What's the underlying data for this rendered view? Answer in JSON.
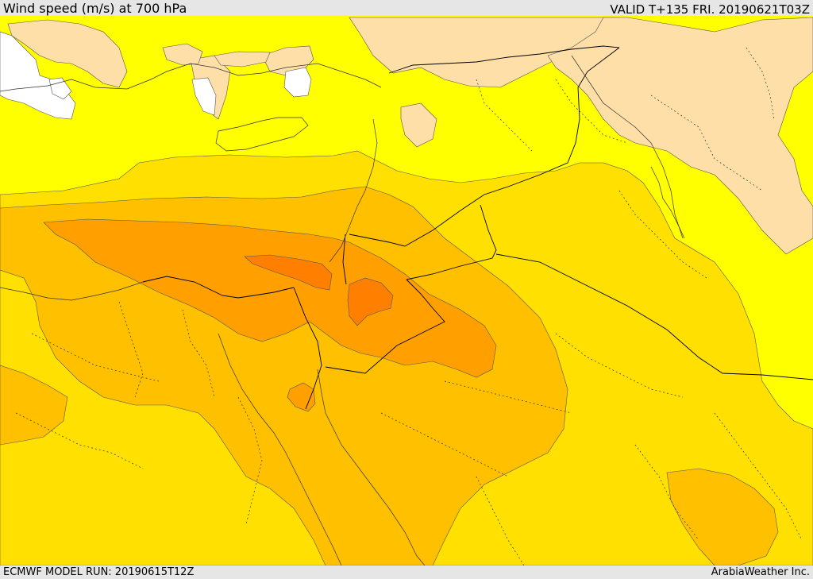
{
  "header": {
    "title": "Wind speed (m/s) at 700 hPa",
    "valid": "VALID T+135 FRI. 20190621T03Z"
  },
  "footer": {
    "model_run": "ECMWF MODEL RUN: 20190615T12Z",
    "credit": "ArabiaWeather Inc."
  },
  "map": {
    "field": "wind-speed-700hPa",
    "palette": {
      "land_no_data": "#ffffff",
      "lowest": "#ffdfa8",
      "low": "#ffff00",
      "moderate": "#ffe000",
      "high": "#ffc000",
      "higher": "#ffa000",
      "highest": "#ff8000",
      "border": "#000000"
    }
  }
}
